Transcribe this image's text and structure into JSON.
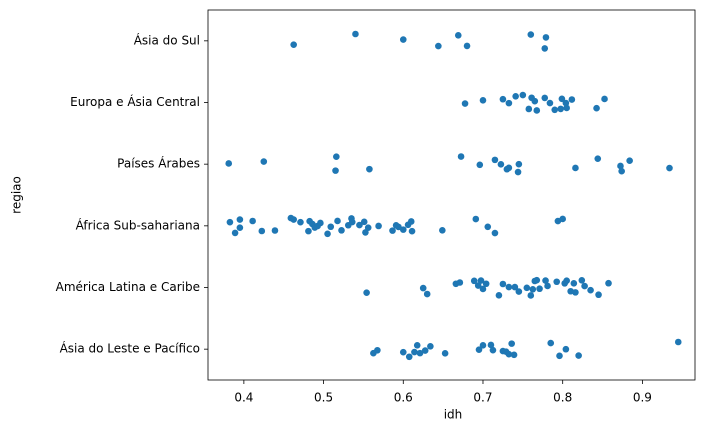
{
  "chart_data": {
    "type": "strip",
    "x_label": "idh",
    "y_label": "regiao",
    "color": "#1f77b4",
    "categories": [
      "Ásia do Sul",
      "Europa e Ásia Central",
      "Países Árabes",
      "África Sub-sahariana",
      "América Latina e Caribe",
      "Ásia do Leste e Pacífico"
    ],
    "values": [
      [
        0.4625,
        0.54,
        0.6,
        0.644,
        0.669,
        0.68,
        0.76,
        0.7775,
        0.779
      ],
      [
        0.6775,
        0.7,
        0.725,
        0.7325,
        0.741,
        0.75,
        0.7575,
        0.761,
        0.765,
        0.7675,
        0.7775,
        0.784,
        0.79,
        0.7975,
        0.799,
        0.804,
        0.805,
        0.8115,
        0.8425,
        0.8525
      ],
      [
        0.381,
        0.425,
        0.515,
        0.516,
        0.5575,
        0.6725,
        0.696,
        0.715,
        0.7225,
        0.73,
        0.7325,
        0.744,
        0.745,
        0.816,
        0.844,
        0.8725,
        0.874,
        0.884,
        0.934
      ],
      [
        0.3825,
        0.389,
        0.395,
        0.395,
        0.411,
        0.4225,
        0.439,
        0.459,
        0.4625,
        0.471,
        0.481,
        0.4825,
        0.486,
        0.489,
        0.4925,
        0.496,
        0.505,
        0.509,
        0.5175,
        0.5225,
        0.531,
        0.535,
        0.536,
        0.545,
        0.551,
        0.5525,
        0.556,
        0.569,
        0.5865,
        0.591,
        0.594,
        0.6,
        0.606,
        0.61,
        0.611,
        0.649,
        0.691,
        0.706,
        0.715,
        0.794,
        0.8
      ],
      [
        0.554,
        0.625,
        0.63,
        0.666,
        0.671,
        0.689,
        0.694,
        0.6975,
        0.7,
        0.704,
        0.72,
        0.725,
        0.7325,
        0.74,
        0.745,
        0.755,
        0.76,
        0.7625,
        0.765,
        0.7675,
        0.771,
        0.7785,
        0.781,
        0.7925,
        0.8025,
        0.805,
        0.81,
        0.814,
        0.816,
        0.824,
        0.8275,
        0.835,
        0.845,
        0.8575
      ],
      [
        0.5625,
        0.5675,
        0.6,
        0.6075,
        0.614,
        0.6175,
        0.621,
        0.6275,
        0.634,
        0.6525,
        0.695,
        0.7,
        0.71,
        0.7125,
        0.725,
        0.729,
        0.7325,
        0.736,
        0.739,
        0.785,
        0.796,
        0.804,
        0.82,
        0.945
      ]
    ],
    "xlim": [
      0.355,
      0.966
    ],
    "xticks": [
      0.4,
      0.5,
      0.6,
      0.7,
      0.8,
      0.9
    ]
  }
}
